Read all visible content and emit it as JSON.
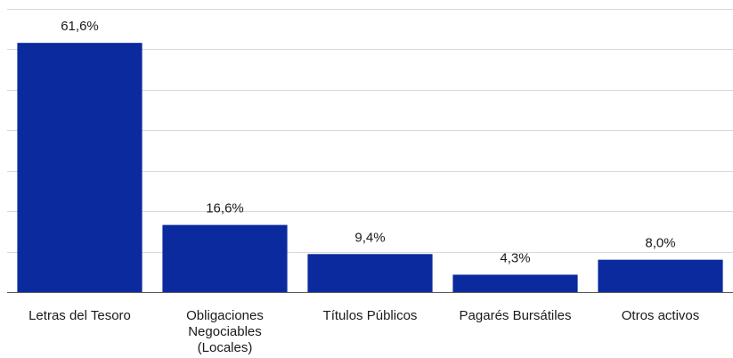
{
  "chart_data": {
    "type": "bar",
    "categories": [
      [
        "Letras del Tesoro"
      ],
      [
        "Obligaciones",
        "Negociables",
        "(Locales)"
      ],
      [
        "Títulos Públicos"
      ],
      [
        "Pagarés Bursátiles"
      ],
      [
        "Otros activos"
      ]
    ],
    "values": [
      61.6,
      16.6,
      9.4,
      4.3,
      8.0
    ],
    "data_labels": [
      "61,6%",
      "16,6%",
      "9,4%",
      "4,3%",
      "8,0%"
    ],
    "ylim": [
      0,
      70
    ],
    "grid": true,
    "legend": "none",
    "colors": {
      "bar": "#0a2a9e"
    }
  }
}
